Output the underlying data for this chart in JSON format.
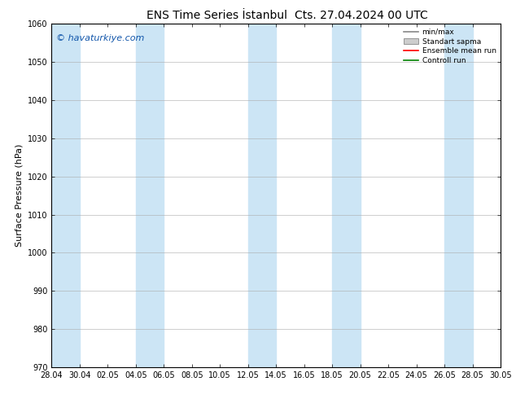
{
  "title": "ENS Time Series İstanbul",
  "title2": "Cts. 27.04.2024 00 UTC",
  "ylabel": "Surface Pressure (hPa)",
  "ylim": [
    970,
    1060
  ],
  "yticks": [
    970,
    980,
    990,
    1000,
    1010,
    1020,
    1030,
    1040,
    1050,
    1060
  ],
  "xtick_labels": [
    "28.04",
    "30.04",
    "02.05",
    "04.05",
    "06.05",
    "08.05",
    "10.05",
    "12.05",
    "14.05",
    "16.05",
    "18.05",
    "20.05",
    "22.05",
    "24.05",
    "26.05",
    "28.05",
    "30.05"
  ],
  "watermark": "© havaturkiye.com",
  "legend_entries": [
    "min/max",
    "Standart sapma",
    "Ensemble mean run",
    "Controll run"
  ],
  "shaded_band_color": "#cce5f5",
  "background_color": "#ffffff",
  "shaded_indices": [
    0,
    3,
    7,
    10,
    14
  ],
  "line_color_ensemble": "#ff0000",
  "line_color_control": "#008000",
  "title_fontsize": 10,
  "label_fontsize": 8,
  "tick_fontsize": 7,
  "watermark_fontsize": 8
}
